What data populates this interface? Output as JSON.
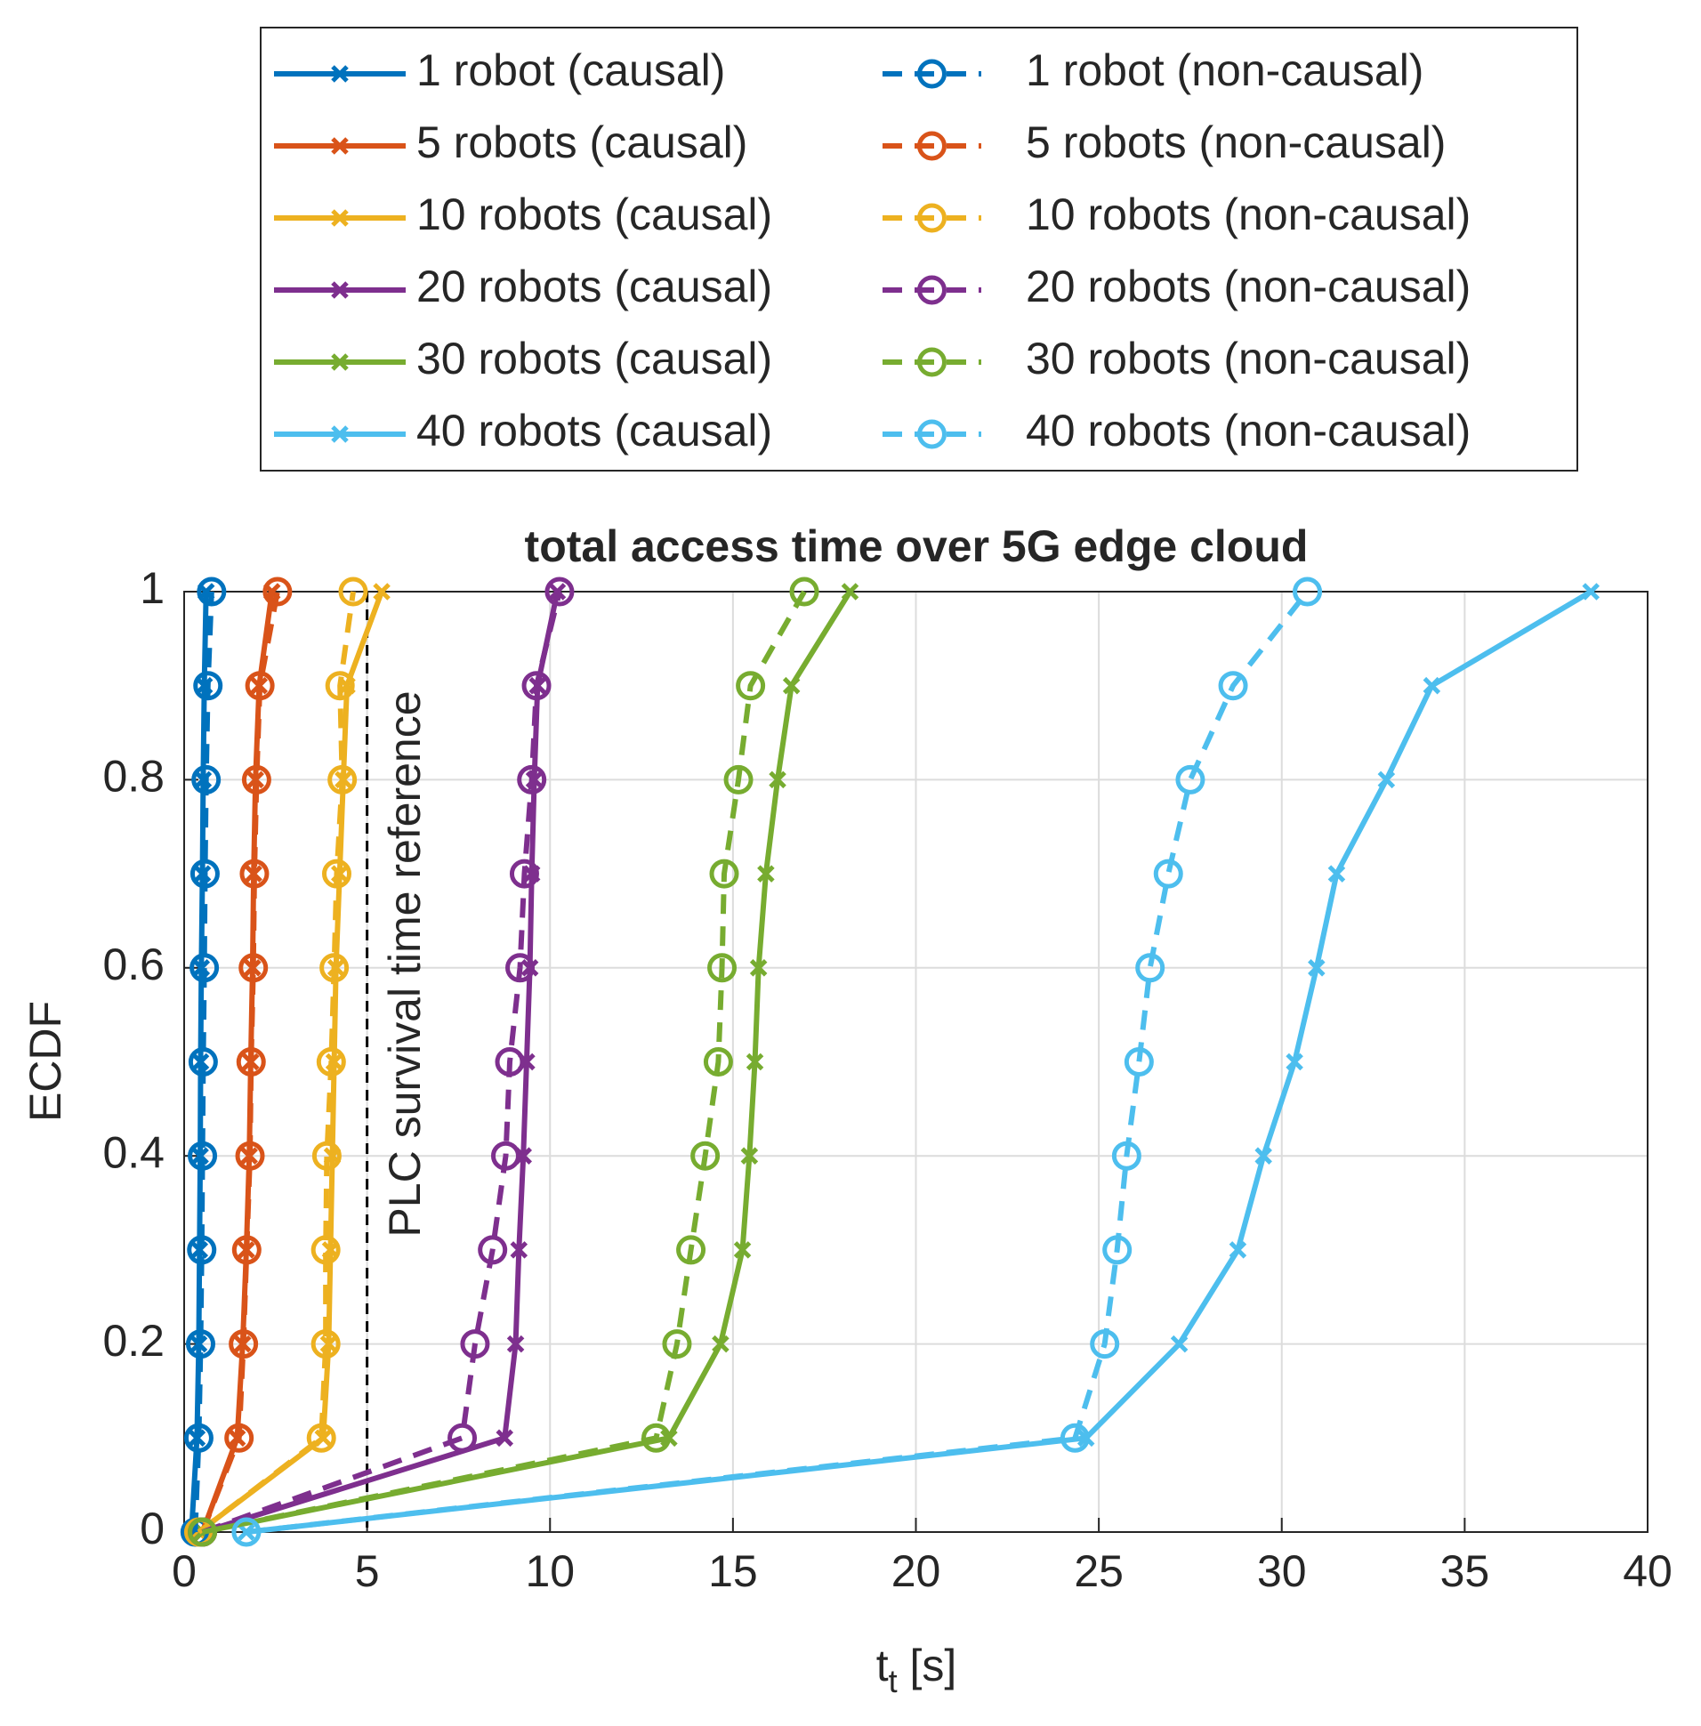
{
  "chart_data": {
    "type": "line",
    "title": "total access time over 5G edge cloud",
    "xlabel": {
      "base": "t",
      "subscript": "t",
      "suffix": " [s]"
    },
    "ylabel": "ECDF",
    "xlim": [
      0,
      40
    ],
    "xticks": [
      0,
      5,
      10,
      15,
      20,
      25,
      30,
      35,
      40
    ],
    "ylim": [
      0,
      1
    ],
    "yticks": [
      0,
      0.2,
      0.4,
      0.6,
      0.8,
      1
    ],
    "grid": true,
    "legend": "top",
    "reference_line": {
      "x": 5,
      "label": "PLC survival time reference"
    },
    "series": [
      {
        "name": "1 robot (causal)",
        "color": "#0072BD",
        "style": "solid",
        "marker": "x",
        "x": [
          0.2,
          0.35,
          0.4,
          0.42,
          0.44,
          0.45,
          0.47,
          0.5,
          0.52,
          0.55,
          0.6
        ],
        "values": [
          0,
          0.1,
          0.2,
          0.3,
          0.4,
          0.5,
          0.6,
          0.7,
          0.8,
          0.9,
          1
        ]
      },
      {
        "name": "5 robots (causal)",
        "color": "#D95319",
        "style": "solid",
        "marker": "x",
        "x": [
          0.5,
          1.45,
          1.6,
          1.7,
          1.78,
          1.82,
          1.87,
          1.9,
          1.95,
          2.05,
          2.4
        ],
        "values": [
          0,
          0.1,
          0.2,
          0.3,
          0.4,
          0.5,
          0.6,
          0.7,
          0.8,
          0.9,
          1
        ]
      },
      {
        "name": "10 robots (causal)",
        "color": "#EDB120",
        "style": "solid",
        "marker": "x",
        "x": [
          0.4,
          3.8,
          3.95,
          4.0,
          4.05,
          4.1,
          4.15,
          4.25,
          4.35,
          4.45,
          5.4
        ],
        "values": [
          0,
          0.1,
          0.2,
          0.3,
          0.4,
          0.5,
          0.6,
          0.7,
          0.8,
          0.9,
          1
        ]
      },
      {
        "name": "20 robots (causal)",
        "color": "#7E2F8E",
        "style": "solid",
        "marker": "x",
        "x": [
          0.5,
          8.76,
          9.06,
          9.15,
          9.27,
          9.36,
          9.45,
          9.5,
          9.57,
          9.66,
          10.2
        ],
        "values": [
          0,
          0.1,
          0.2,
          0.3,
          0.4,
          0.5,
          0.6,
          0.7,
          0.8,
          0.9,
          1
        ]
      },
      {
        "name": "30 robots (causal)",
        "color": "#77AC30",
        "style": "solid",
        "marker": "x",
        "x": [
          0.5,
          13.25,
          14.66,
          15.26,
          15.45,
          15.6,
          15.7,
          15.9,
          16.22,
          16.6,
          18.2
        ],
        "values": [
          0,
          0.1,
          0.2,
          0.3,
          0.4,
          0.5,
          0.6,
          0.7,
          0.8,
          0.9,
          1
        ]
      },
      {
        "name": "40 robots (causal)",
        "color": "#4DBEEE",
        "style": "solid",
        "marker": "x",
        "x": [
          1.7,
          24.65,
          27.2,
          28.8,
          29.5,
          30.35,
          30.95,
          31.5,
          32.86,
          34.1,
          38.45
        ],
        "values": [
          0,
          0.1,
          0.2,
          0.3,
          0.4,
          0.5,
          0.6,
          0.7,
          0.8,
          0.9,
          1
        ]
      },
      {
        "name": "1 robot (non-causal)",
        "color": "#0072BD",
        "style": "dashed",
        "marker": "o",
        "x": [
          0.3,
          0.4,
          0.45,
          0.48,
          0.5,
          0.52,
          0.55,
          0.57,
          0.6,
          0.65,
          0.75
        ],
        "values": [
          0,
          0.1,
          0.2,
          0.3,
          0.4,
          0.5,
          0.6,
          0.7,
          0.8,
          0.9,
          1
        ]
      },
      {
        "name": "5 robots (non-causal)",
        "color": "#D95319",
        "style": "dashed",
        "marker": "o",
        "x": [
          0.5,
          1.5,
          1.62,
          1.71,
          1.8,
          1.83,
          1.89,
          1.92,
          1.98,
          2.07,
          2.55
        ],
        "values": [
          0,
          0.1,
          0.2,
          0.3,
          0.4,
          0.5,
          0.6,
          0.7,
          0.8,
          0.9,
          1
        ]
      },
      {
        "name": "10 robots (non-causal)",
        "color": "#EDB120",
        "style": "dashed",
        "marker": "o",
        "x": [
          0.4,
          3.75,
          3.87,
          3.87,
          3.9,
          4.02,
          4.1,
          4.17,
          4.32,
          4.26,
          4.62
        ],
        "values": [
          0,
          0.1,
          0.2,
          0.3,
          0.4,
          0.5,
          0.6,
          0.7,
          0.8,
          0.9,
          1
        ]
      },
      {
        "name": "20 robots (non-causal)",
        "color": "#7E2F8E",
        "style": "dashed",
        "marker": "o",
        "x": [
          0.5,
          7.6,
          7.95,
          8.43,
          8.79,
          8.9,
          9.18,
          9.3,
          9.5,
          9.63,
          10.26
        ],
        "values": [
          0,
          0.1,
          0.2,
          0.3,
          0.4,
          0.5,
          0.6,
          0.7,
          0.8,
          0.9,
          1
        ]
      },
      {
        "name": "30 robots (non-causal)",
        "color": "#77AC30",
        "style": "dashed",
        "marker": "o",
        "x": [
          0.5,
          12.9,
          13.47,
          13.85,
          14.24,
          14.6,
          14.7,
          14.76,
          15.15,
          15.48,
          16.95
        ],
        "values": [
          0,
          0.1,
          0.2,
          0.3,
          0.4,
          0.5,
          0.6,
          0.7,
          0.8,
          0.9,
          1
        ]
      },
      {
        "name": "40 robots (non-causal)",
        "color": "#4DBEEE",
        "style": "dashed",
        "marker": "o",
        "x": [
          1.7,
          24.35,
          25.16,
          25.5,
          25.76,
          26.1,
          26.4,
          26.9,
          27.5,
          28.67,
          30.7
        ],
        "values": [
          0,
          0.1,
          0.2,
          0.3,
          0.4,
          0.5,
          0.6,
          0.7,
          0.8,
          0.9,
          1
        ]
      }
    ]
  }
}
